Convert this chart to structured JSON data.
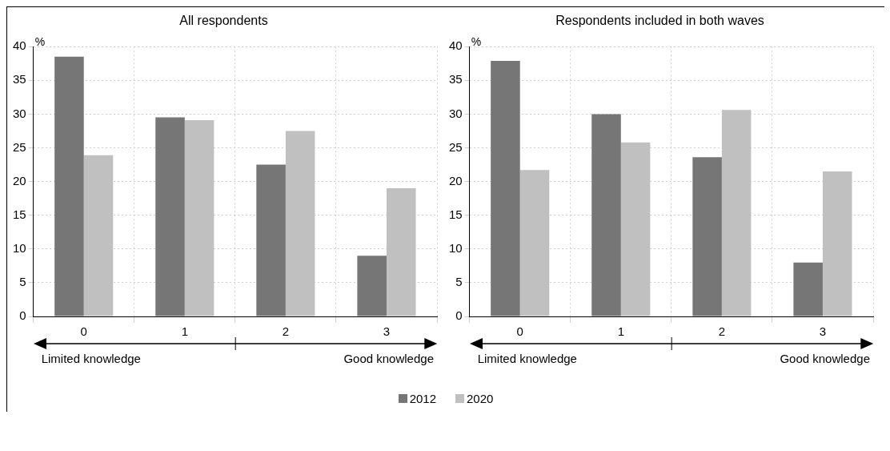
{
  "chart_data": [
    {
      "type": "bar",
      "title": "All respondents",
      "ylabel": "%",
      "categories": [
        "0",
        "1",
        "2",
        "3"
      ],
      "series": [
        {
          "name": "2012",
          "color": "#767676",
          "values": [
            38.5,
            29.5,
            22.5,
            9.0
          ]
        },
        {
          "name": "2020",
          "color": "#c0c0c0",
          "values": [
            23.9,
            29.1,
            27.5,
            19.0
          ]
        }
      ],
      "ylim": [
        0,
        40
      ],
      "yticks": [
        0,
        5,
        10,
        15,
        20,
        25,
        30,
        35,
        40
      ],
      "grid": true,
      "legend": "bottom",
      "annotations": [
        "Limited knowledge",
        "Good knowledge"
      ]
    },
    {
      "type": "bar",
      "title": "Respondents included in both waves",
      "ylabel": "%",
      "categories": [
        "0",
        "1",
        "2",
        "3"
      ],
      "series": [
        {
          "name": "2012",
          "color": "#767676",
          "values": [
            37.9,
            30.0,
            23.6,
            8.0
          ]
        },
        {
          "name": "2020",
          "color": "#c0c0c0",
          "values": [
            21.7,
            25.8,
            30.6,
            21.5
          ]
        }
      ],
      "ylim": [
        0,
        40
      ],
      "yticks": [
        0,
        5,
        10,
        15,
        20,
        25,
        30,
        35,
        40
      ],
      "grid": true,
      "legend": "bottom",
      "annotations": [
        "Limited knowledge",
        "Good knowledge"
      ]
    }
  ]
}
